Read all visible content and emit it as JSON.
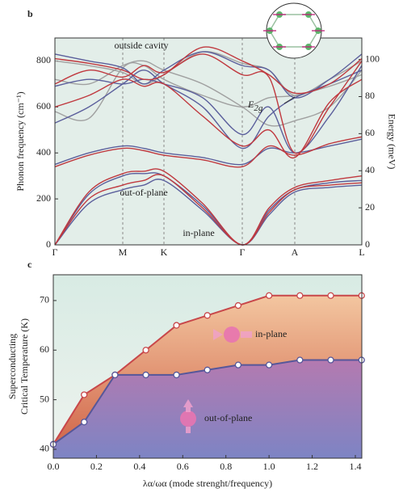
{
  "chart_data": [
    {
      "type": "bands",
      "panel": "b",
      "ylabel": "Phonon frequency (cm⁻¹)",
      "y2label": "Energy (meV)",
      "x": [
        0,
        42,
        84,
        110,
        135,
        183,
        232,
        265,
        297,
        340,
        380
      ],
      "xlim": [
        0,
        380
      ],
      "xticks": [
        {
          "value": 0,
          "label": "Γ"
        },
        {
          "value": 84,
          "label": "M"
        },
        {
          "value": 135,
          "label": "K"
        },
        {
          "value": 232,
          "label": "Γ"
        },
        {
          "value": 297,
          "label": "A"
        },
        {
          "value": 380,
          "label": "L"
        }
      ],
      "ylim": [
        0,
        900
      ],
      "yticks": [
        0,
        200,
        400,
        600,
        800
      ],
      "y2lim": [
        0,
        111.6
      ],
      "y2ticks": [
        0,
        20,
        40,
        60,
        80,
        100
      ],
      "series": [
        {
          "name": "outside cavity",
          "color": "#a0a0a0",
          "bands": [
            [
              580,
              550,
              770,
              780,
              720,
              650,
              600,
              640,
              650,
              690,
              740
            ],
            [
              720,
              700,
              780,
              800,
              760,
              700,
              600,
              520,
              540,
              600,
              760
            ],
            [
              800,
              780,
              750,
              700,
              740,
              840,
              790,
              760,
              650,
              720,
              800
            ]
          ]
        },
        {
          "name": "out-of-plane",
          "color": "#5b5f9c",
          "bands": [
            [
              0,
              180,
              240,
              260,
              280,
              150,
              0,
              130,
              230,
              250,
              260
            ],
            [
              0,
              220,
              300,
              310,
              300,
              170,
              0,
              150,
              240,
              270,
              280
            ],
            [
              350,
              400,
              430,
              420,
              400,
              380,
              350,
              420,
              400,
              430,
              460
            ],
            [
              530,
              600,
              700,
              760,
              700,
              600,
              420,
              560,
              640,
              700,
              760
            ],
            [
              690,
              720,
              700,
              720,
              700,
              640,
              480,
              600,
              400,
              560,
              780
            ],
            [
              830,
              800,
              770,
              700,
              760,
              840,
              780,
              760,
              640,
              720,
              830
            ]
          ]
        },
        {
          "name": "in-plane",
          "color": "#c0393f",
          "bands": [
            [
              0,
              200,
              260,
              280,
              300,
              160,
              0,
              140,
              240,
              260,
              270
            ],
            [
              0,
              230,
              310,
              320,
              320,
              180,
              0,
              160,
              250,
              280,
              300
            ],
            [
              340,
              390,
              420,
              410,
              390,
              370,
              340,
              430,
              390,
              440,
              470
            ],
            [
              600,
              650,
              720,
              690,
              700,
              560,
              430,
              500,
              380,
              620,
              720
            ],
            [
              700,
              760,
              730,
              780,
              750,
              830,
              740,
              730,
              400,
              600,
              800
            ],
            [
              810,
              790,
              760,
              720,
              740,
              860,
              800,
              740,
              660,
              700,
              810
            ]
          ]
        }
      ],
      "annotation": {
        "base": "E",
        "sub": "2g"
      }
    },
    {
      "type": "area-line",
      "panel": "c",
      "ylabel": [
        "Superconducting",
        "Critical Temperature (K)"
      ],
      "xlabel": "λα/ωα (mode strenght/frequency)",
      "x": [
        0,
        0.143,
        0.286,
        0.429,
        0.571,
        0.714,
        0.857,
        1.0,
        1.143,
        1.286,
        1.429
      ],
      "xlim": [
        0,
        1.43
      ],
      "xticks": [
        {
          "value": 0,
          "label": "0.0"
        },
        0.2,
        0.4,
        0.6,
        0.8,
        {
          "value": 1,
          "label": "1.0"
        },
        1.2,
        1.4
      ],
      "ylim": [
        38.2,
        75.2
      ],
      "yticks": [
        40,
        50,
        60,
        70
      ],
      "series": [
        {
          "name": "in-plane",
          "color": "#c8474a",
          "values": [
            41,
            51,
            55,
            60,
            65,
            67,
            69,
            71,
            71,
            71,
            71
          ]
        },
        {
          "name": "out-of-plane",
          "color": "#56579a",
          "values": [
            41,
            45.5,
            55,
            55,
            55,
            56,
            57,
            57,
            58,
            58,
            58
          ]
        }
      ]
    }
  ]
}
